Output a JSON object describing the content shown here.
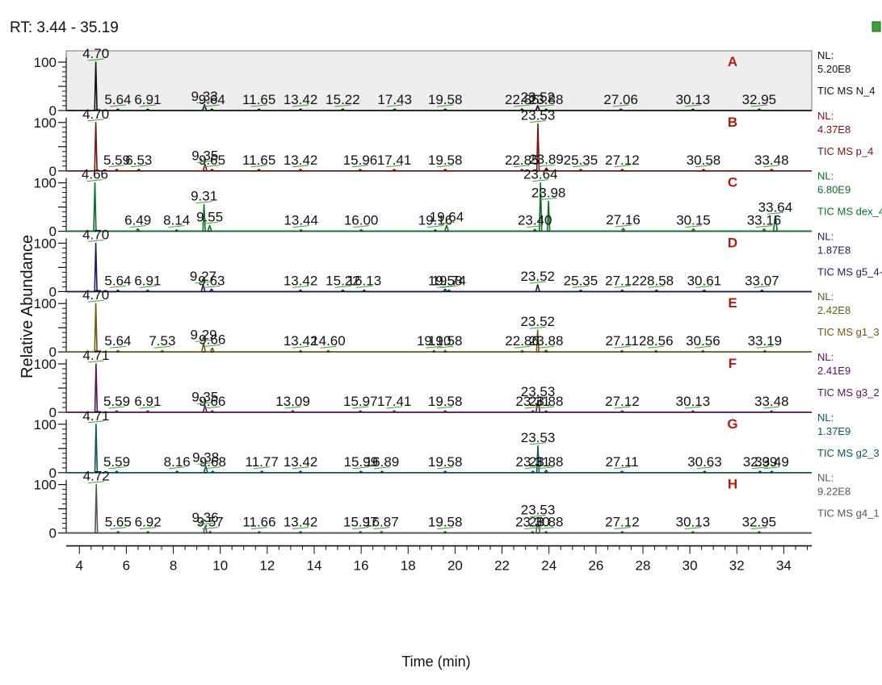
{
  "header": {
    "rt_label": "RT: 3.44 - 35.19"
  },
  "chart_data": {
    "type": "line",
    "xlabel": "Time (min)",
    "ylabel": "Relative Abundance",
    "xlim": [
      3.44,
      35.19
    ],
    "x_ticks": [
      "4",
      "6",
      "8",
      "10",
      "12",
      "14",
      "16",
      "18",
      "20",
      "22",
      "24",
      "26",
      "28",
      "30",
      "32",
      "34"
    ],
    "y_ticks": [
      "0",
      "50",
      "100"
    ],
    "panels": [
      {
        "letter": "A",
        "nl_label": "NL:",
        "nl_value": "5.20E8",
        "scan": "TIC MS N_4",
        "color": "#111111",
        "shaded": true,
        "peaks": [
          {
            "x": 4.7,
            "y": 100,
            "label": "4.70"
          },
          {
            "x": 5.64,
            "y": 3,
            "label": "5.64"
          },
          {
            "x": 6.91,
            "y": 3,
            "label": "6.91"
          },
          {
            "x": 9.33,
            "y": 12,
            "label": "9.33"
          },
          {
            "x": 9.64,
            "y": 3,
            "label": "9.64"
          },
          {
            "x": 11.65,
            "y": 3,
            "label": "11.65"
          },
          {
            "x": 13.42,
            "y": 3,
            "label": "13.42"
          },
          {
            "x": 15.22,
            "y": 3,
            "label": "15.22"
          },
          {
            "x": 17.43,
            "y": 3,
            "label": "17.43"
          },
          {
            "x": 19.58,
            "y": 3,
            "label": "19.58"
          },
          {
            "x": 22.85,
            "y": 3,
            "label": "22.85"
          },
          {
            "x": 23.52,
            "y": 10,
            "label": "23.52"
          },
          {
            "x": 23.88,
            "y": 3,
            "label": "23.88"
          },
          {
            "x": 27.06,
            "y": 3,
            "label": "27.06"
          },
          {
            "x": 30.13,
            "y": 3,
            "label": "30.13"
          },
          {
            "x": 32.95,
            "y": 3,
            "label": "32.95"
          }
        ]
      },
      {
        "letter": "B",
        "nl_label": "NL:",
        "nl_value": "4.37E8",
        "scan": "TIC MS p_4",
        "color": "#7a1212",
        "shaded": false,
        "peaks": [
          {
            "x": 4.7,
            "y": 100,
            "label": "4.70"
          },
          {
            "x": 5.59,
            "y": 3,
            "label": "5.59"
          },
          {
            "x": 6.53,
            "y": 3,
            "label": "6.53"
          },
          {
            "x": 9.35,
            "y": 14,
            "label": "9.35"
          },
          {
            "x": 9.65,
            "y": 3,
            "label": "9.65"
          },
          {
            "x": 11.65,
            "y": 3,
            "label": "11.65"
          },
          {
            "x": 13.42,
            "y": 3,
            "label": "13.42"
          },
          {
            "x": 15.96,
            "y": 3,
            "label": "15.96"
          },
          {
            "x": 17.41,
            "y": 3,
            "label": "17.41"
          },
          {
            "x": 19.58,
            "y": 3,
            "label": "19.58"
          },
          {
            "x": 22.85,
            "y": 3,
            "label": "22.85"
          },
          {
            "x": 23.53,
            "y": 97,
            "label": "23.53"
          },
          {
            "x": 23.89,
            "y": 6,
            "label": "23.89"
          },
          {
            "x": 25.35,
            "y": 3,
            "label": "25.35"
          },
          {
            "x": 27.12,
            "y": 3,
            "label": "27.12"
          },
          {
            "x": 30.58,
            "y": 3,
            "label": "30.58"
          },
          {
            "x": 33.48,
            "y": 3,
            "label": "33.48"
          }
        ]
      },
      {
        "letter": "C",
        "nl_label": "NL:",
        "nl_value": "6.80E9",
        "scan": "TIC MS dex_4",
        "color": "#0c6e2a",
        "shaded": false,
        "peaks": [
          {
            "x": 4.66,
            "y": 100,
            "label": "4.66"
          },
          {
            "x": 6.49,
            "y": 5,
            "label": "6.49"
          },
          {
            "x": 8.14,
            "y": 3,
            "label": "8.14"
          },
          {
            "x": 9.31,
            "y": 55,
            "label": "9.31"
          },
          {
            "x": 9.55,
            "y": 12,
            "label": "9.55"
          },
          {
            "x": 13.44,
            "y": 3,
            "label": "13.44"
          },
          {
            "x": 16.0,
            "y": 3,
            "label": "16.00"
          },
          {
            "x": 19.16,
            "y": 3,
            "label": "19.16"
          },
          {
            "x": 19.64,
            "y": 12,
            "label": "19.64"
          },
          {
            "x": 23.4,
            "y": 4,
            "label": "23.40"
          },
          {
            "x": 23.64,
            "y": 100,
            "label": "23.64"
          },
          {
            "x": 23.98,
            "y": 62,
            "label": "23.98"
          },
          {
            "x": 27.16,
            "y": 6,
            "label": "27.16"
          },
          {
            "x": 30.15,
            "y": 5,
            "label": "30.15"
          },
          {
            "x": 33.16,
            "y": 5,
            "label": "33.16"
          },
          {
            "x": 33.64,
            "y": 32,
            "label": "33.64"
          }
        ]
      },
      {
        "letter": "D",
        "nl_label": "NL:",
        "nl_value": "1.87E8",
        "scan": "TIC MS g5_4-",
        "color": "#1c1c5c",
        "shaded": false,
        "peaks": [
          {
            "x": 4.7,
            "y": 100,
            "label": "4.70"
          },
          {
            "x": 5.64,
            "y": 3,
            "label": "5.64"
          },
          {
            "x": 6.91,
            "y": 3,
            "label": "6.91"
          },
          {
            "x": 9.27,
            "y": 14,
            "label": "9.27"
          },
          {
            "x": 9.63,
            "y": 5,
            "label": "9.63"
          },
          {
            "x": 13.42,
            "y": 3,
            "label": "13.42"
          },
          {
            "x": 15.22,
            "y": 3,
            "label": "15.22"
          },
          {
            "x": 16.13,
            "y": 3,
            "label": "16.13"
          },
          {
            "x": 19.58,
            "y": 5,
            "label": "19.58"
          },
          {
            "x": 19.74,
            "y": 3,
            "label": "19.74"
          },
          {
            "x": 23.52,
            "y": 14,
            "label": "23.52"
          },
          {
            "x": 25.35,
            "y": 3,
            "label": "25.35"
          },
          {
            "x": 27.12,
            "y": 3,
            "label": "27.12"
          },
          {
            "x": 28.58,
            "y": 3,
            "label": "28.58"
          },
          {
            "x": 30.61,
            "y": 3,
            "label": "30.61"
          },
          {
            "x": 33.07,
            "y": 3,
            "label": "33.07"
          }
        ]
      },
      {
        "letter": "E",
        "nl_label": "NL:",
        "nl_value": "2.42E8",
        "scan": "TIC MS g1_3",
        "color": "#6b5a12",
        "shaded": false,
        "peaks": [
          {
            "x": 4.7,
            "y": 100,
            "label": "4.70"
          },
          {
            "x": 5.64,
            "y": 3,
            "label": "5.64"
          },
          {
            "x": 7.53,
            "y": 3,
            "label": "7.53"
          },
          {
            "x": 9.29,
            "y": 18,
            "label": "9.29"
          },
          {
            "x": 9.66,
            "y": 8,
            "label": "9.66"
          },
          {
            "x": 13.42,
            "y": 3,
            "label": "13.42"
          },
          {
            "x": 14.6,
            "y": 3,
            "label": "14.60"
          },
          {
            "x": 19.1,
            "y": 3,
            "label": "19.10"
          },
          {
            "x": 19.58,
            "y": 3,
            "label": "19.58"
          },
          {
            "x": 22.86,
            "y": 3,
            "label": "22.86"
          },
          {
            "x": 23.52,
            "y": 45,
            "label": "23.52"
          },
          {
            "x": 23.88,
            "y": 4,
            "label": "23.88"
          },
          {
            "x": 27.11,
            "y": 3,
            "label": "27.11"
          },
          {
            "x": 28.56,
            "y": 3,
            "label": "28.56"
          },
          {
            "x": 30.56,
            "y": 3,
            "label": "30.56"
          },
          {
            "x": 33.19,
            "y": 3,
            "label": "33.19"
          }
        ]
      },
      {
        "letter": "F",
        "nl_label": "NL:",
        "nl_value": "2.41E9",
        "scan": "TIC MS g3_2",
        "color": "#5a1258",
        "shaded": false,
        "peaks": [
          {
            "x": 4.71,
            "y": 100,
            "label": "4.71"
          },
          {
            "x": 5.59,
            "y": 3,
            "label": "5.59"
          },
          {
            "x": 6.91,
            "y": 3,
            "label": "6.91"
          },
          {
            "x": 9.35,
            "y": 14,
            "label": "9.35"
          },
          {
            "x": 9.66,
            "y": 3,
            "label": "9.66"
          },
          {
            "x": 13.09,
            "y": 3,
            "label": "13.09"
          },
          {
            "x": 15.97,
            "y": 3,
            "label": "15.97"
          },
          {
            "x": 17.41,
            "y": 3,
            "label": "17.41"
          },
          {
            "x": 19.58,
            "y": 3,
            "label": "19.58"
          },
          {
            "x": 23.31,
            "y": 3,
            "label": "23.31"
          },
          {
            "x": 23.53,
            "y": 25,
            "label": "23.53"
          },
          {
            "x": 23.88,
            "y": 3,
            "label": "23.88"
          },
          {
            "x": 27.12,
            "y": 3,
            "label": "27.12"
          },
          {
            "x": 30.13,
            "y": 3,
            "label": "30.13"
          },
          {
            "x": 33.48,
            "y": 3,
            "label": "33.48"
          }
        ]
      },
      {
        "letter": "G",
        "nl_label": "NL:",
        "nl_value": "1.37E9",
        "scan": "TIC MS g2_3",
        "color": "#0f5560",
        "shaded": false,
        "peaks": [
          {
            "x": 4.71,
            "y": 100,
            "label": "4.71"
          },
          {
            "x": 5.59,
            "y": 3,
            "label": "5.59"
          },
          {
            "x": 8.16,
            "y": 3,
            "label": "8.16"
          },
          {
            "x": 9.38,
            "y": 14,
            "label": "9.38"
          },
          {
            "x": 9.68,
            "y": 3,
            "label": "9.68"
          },
          {
            "x": 11.77,
            "y": 3,
            "label": "11.77"
          },
          {
            "x": 13.42,
            "y": 3,
            "label": "13.42"
          },
          {
            "x": 15.99,
            "y": 3,
            "label": "15.99"
          },
          {
            "x": 16.89,
            "y": 3,
            "label": "16.89"
          },
          {
            "x": 19.58,
            "y": 3,
            "label": "19.58"
          },
          {
            "x": 23.31,
            "y": 3,
            "label": "23.31"
          },
          {
            "x": 23.53,
            "y": 55,
            "label": "23.53"
          },
          {
            "x": 23.88,
            "y": 5,
            "label": "23.88"
          },
          {
            "x": 27.11,
            "y": 3,
            "label": "27.11"
          },
          {
            "x": 30.63,
            "y": 3,
            "label": "30.63"
          },
          {
            "x": 32.99,
            "y": 3,
            "label": "32.99"
          },
          {
            "x": 33.49,
            "y": 3,
            "label": "33.49"
          }
        ]
      },
      {
        "letter": "H",
        "nl_label": "NL:",
        "nl_value": "9.22E8",
        "scan": "TIC MS g4_1",
        "color": "#555555",
        "shaded": false,
        "peaks": [
          {
            "x": 4.72,
            "y": 100,
            "label": "4.72"
          },
          {
            "x": 5.65,
            "y": 3,
            "label": "5.65"
          },
          {
            "x": 6.92,
            "y": 3,
            "label": "6.92"
          },
          {
            "x": 9.36,
            "y": 14,
            "label": "9.36"
          },
          {
            "x": 9.57,
            "y": 3,
            "label": "9.57"
          },
          {
            "x": 11.66,
            "y": 3,
            "label": "11.66"
          },
          {
            "x": 13.42,
            "y": 3,
            "label": "13.42"
          },
          {
            "x": 15.97,
            "y": 3,
            "label": "15.97"
          },
          {
            "x": 16.87,
            "y": 3,
            "label": "16.87"
          },
          {
            "x": 19.58,
            "y": 3,
            "label": "19.58"
          },
          {
            "x": 23.3,
            "y": 3,
            "label": "23.30"
          },
          {
            "x": 23.53,
            "y": 30,
            "label": "23.53"
          },
          {
            "x": 23.88,
            "y": 3,
            "label": "23.88"
          },
          {
            "x": 27.12,
            "y": 3,
            "label": "27.12"
          },
          {
            "x": 30.13,
            "y": 3,
            "label": "30.13"
          },
          {
            "x": 32.95,
            "y": 3,
            "label": "32.95"
          }
        ]
      }
    ]
  }
}
